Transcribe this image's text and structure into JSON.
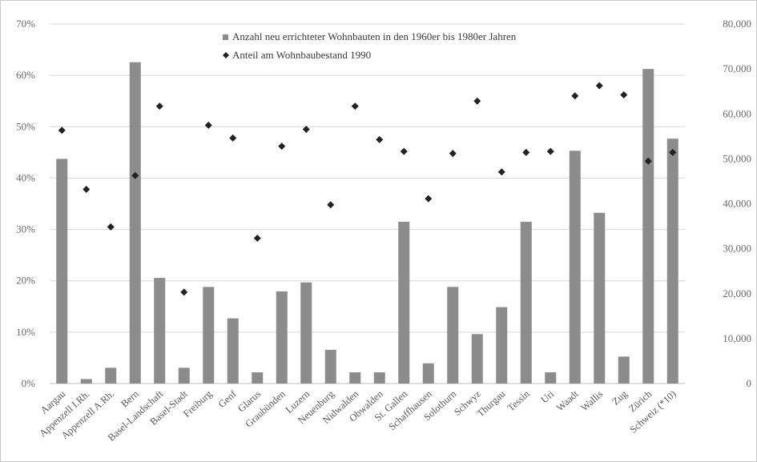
{
  "chart_data": {
    "type": "bar",
    "title": "",
    "xlabel": "",
    "ylabel": "",
    "y2label": "",
    "ylim": [
      0,
      0.7
    ],
    "y2lim": [
      0,
      80000
    ],
    "grid": true,
    "legend_position": "top-center",
    "left_ticks": [
      "0%",
      "10%",
      "20%",
      "30%",
      "40%",
      "50%",
      "60%",
      "70%"
    ],
    "right_ticks": [
      "0",
      "10,000",
      "20,000",
      "30,000",
      "40,000",
      "50,000",
      "60,000",
      "70,000",
      "80,000"
    ],
    "categories": [
      "Aargau",
      "Appenzell I.Rh.",
      "Appenzell A.Rh.",
      "Bern",
      "Basel-Landschaft",
      "Basel-Stadt",
      "Freiburg",
      "Genf",
      "Glarus",
      "Graubünden",
      "Luzern",
      "Neuenburg",
      "Nidwalden",
      "Obwalden",
      "St. Gallen",
      "Schaffhausen",
      "Solothurn",
      "Schwyz",
      "Thurgau",
      "Tessin",
      "Uri",
      "Waadt",
      "Wallis",
      "Zug",
      "Zürich",
      "Schweiz (*10)"
    ],
    "series": [
      {
        "name": "Anzahl neu errichteter Wohnbauten in den 1960er bis 1980er Jahren",
        "kind": "bar",
        "axis": "right",
        "color": "#8c8c8c",
        "values": [
          50000,
          1000,
          3500,
          71500,
          23500,
          3500,
          21500,
          14500,
          2500,
          20500,
          22500,
          7500,
          2500,
          2500,
          36000,
          4500,
          21500,
          11000,
          17000,
          36000,
          2500,
          51800,
          38000,
          6000,
          70000,
          54500
        ]
      },
      {
        "name": "Anteil am Wohnbaubestand 1990",
        "kind": "scatter",
        "axis": "left",
        "color": "#222222",
        "values": [
          0.493,
          0.378,
          0.305,
          0.405,
          0.54,
          0.178,
          0.503,
          0.478,
          0.283,
          0.462,
          0.495,
          0.348,
          0.54,
          0.475,
          0.452,
          0.36,
          0.448,
          0.55,
          0.412,
          0.45,
          0.452,
          0.56,
          0.58,
          0.562,
          0.433,
          0.45
        ]
      }
    ]
  }
}
